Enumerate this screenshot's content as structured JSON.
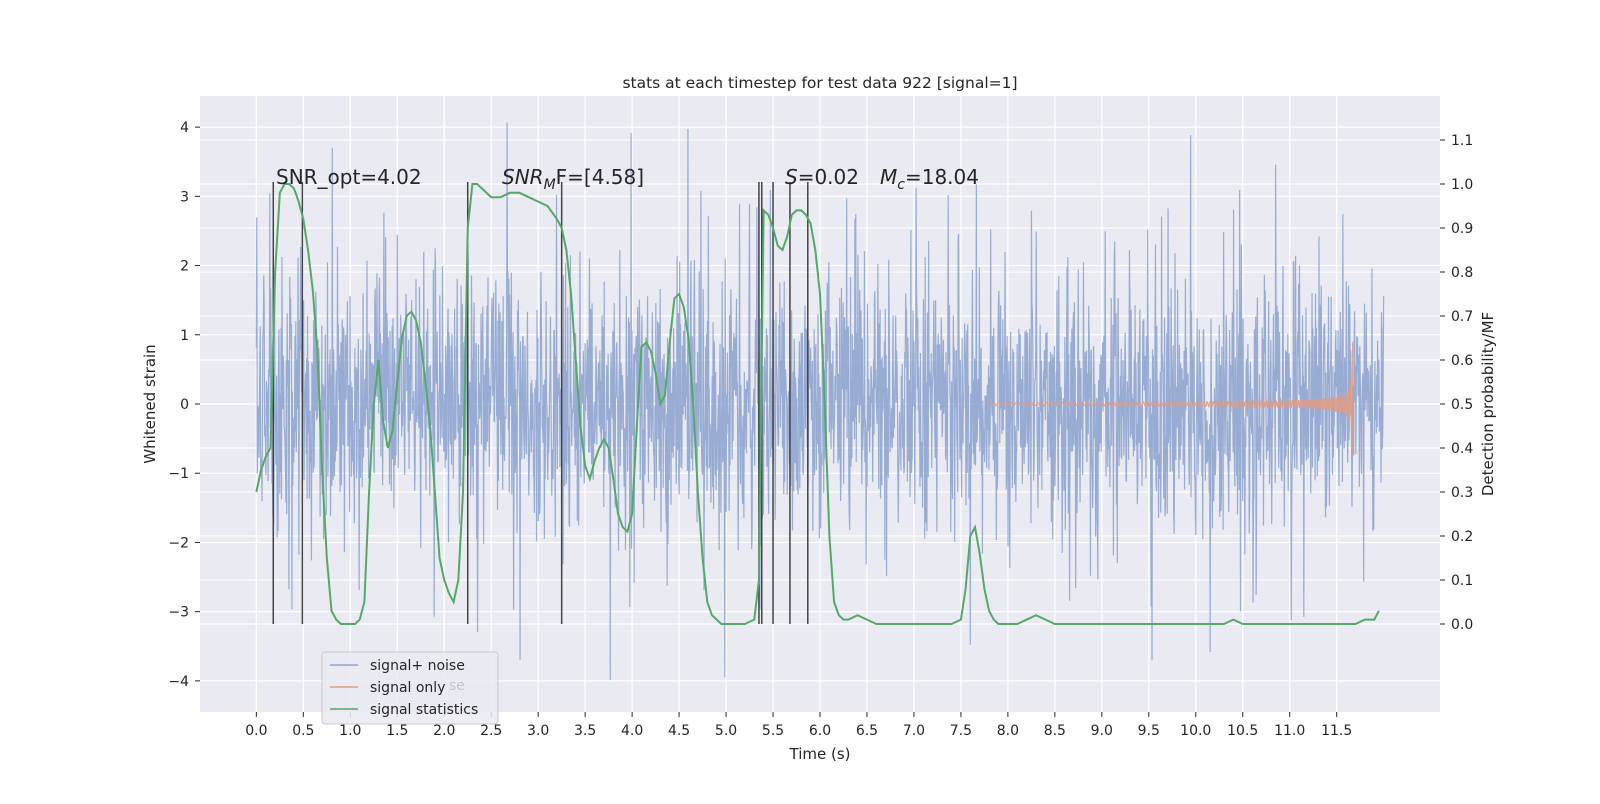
{
  "chart_data": {
    "type": "line",
    "title": "stats at each timestep for test data 922 [signal=1]",
    "xlabel": "Time (s)",
    "ylabel": "Whitened strain",
    "ylabel_right": "Detection probability/MF",
    "xlim": [
      -0.6,
      12.6
    ],
    "ylim": [
      -4.45,
      4.45
    ],
    "ylim_right": [
      -0.2,
      1.2
    ],
    "grid": true,
    "xticks": [
      0.0,
      0.5,
      1.0,
      1.5,
      2.0,
      2.5,
      3.0,
      3.5,
      4.0,
      4.5,
      5.0,
      5.5,
      6.0,
      6.5,
      7.0,
      7.5,
      8.0,
      8.5,
      9.0,
      9.5,
      10.0,
      10.5,
      11.0,
      11.5
    ],
    "xtick_labels": [
      "0.0",
      "0.5",
      "1.0",
      "1.5",
      "2.0",
      "2.5",
      "3.0",
      "3.5",
      "4.0",
      "4.5",
      "5.0",
      "5.5",
      "6.0",
      "6.5",
      "7.0",
      "7.5",
      "8.0",
      "8.5",
      "9.0",
      "9.5",
      "10.0",
      "10.5",
      "11.0",
      "11.5"
    ],
    "yticks_left": [
      -4,
      -3,
      -2,
      -1,
      0,
      1,
      2,
      3,
      4
    ],
    "yticks_left_labels": [
      "−4",
      "−3",
      "−2",
      "−1",
      "0",
      "1",
      "2",
      "3",
      "4"
    ],
    "yticks_right": [
      0.0,
      0.1,
      0.2,
      0.3,
      0.4,
      0.5,
      0.6,
      0.7,
      0.8,
      0.9,
      1.0,
      1.1
    ],
    "yticks_right_labels": [
      "0.0",
      "0.1",
      "0.2",
      "0.3",
      "0.4",
      "0.5",
      "0.6",
      "0.7",
      "0.8",
      "0.9",
      "1.0",
      "1.1"
    ],
    "legend": {
      "position": "lower-left",
      "entries": [
        {
          "label": "signal+ noise",
          "color": "#8fa5cf"
        },
        {
          "label": "signal only",
          "color": "#dd9c86"
        },
        {
          "label": "signal statistics",
          "color": "#55a868"
        }
      ],
      "ghost_text": "se"
    },
    "annotations": {
      "snr_opt": "SNR_opt=4.02",
      "snr_mf_main": "SNR",
      "snr_mf_sub": "M",
      "snr_mf_rest": "F=[4.58]",
      "s_main": "S",
      "s_rest": "=0.02",
      "mc_main": "M",
      "mc_sub": "c",
      "mc_rest": "=18.04"
    },
    "vertical_lines_x": [
      0.18,
      0.49,
      2.25,
      3.25,
      5.35,
      5.38,
      5.5,
      5.68,
      5.87
    ],
    "vertical_lines_range": [
      0.0,
      1.0
    ],
    "noise": {
      "t_start": 0.0,
      "t_end": 12.0,
      "envelope_typical": 2.0,
      "envelope_max": 4.1,
      "envelope_min": -4.05,
      "color": "#8fa5cf"
    },
    "signal_only": {
      "t_start": 7.8,
      "t_peak": 11.67,
      "peak_amplitude": 0.9,
      "min_amplitude": -0.75,
      "color": "#dd9c86"
    },
    "statistics": {
      "name": "signal statistics",
      "color": "#55a868",
      "x": [
        0.0,
        0.05,
        0.1,
        0.15,
        0.2,
        0.25,
        0.3,
        0.35,
        0.4,
        0.45,
        0.5,
        0.55,
        0.6,
        0.65,
        0.7,
        0.75,
        0.8,
        0.85,
        0.9,
        0.95,
        1.0,
        1.05,
        1.1,
        1.15,
        1.2,
        1.25,
        1.3,
        1.35,
        1.4,
        1.45,
        1.5,
        1.55,
        1.6,
        1.65,
        1.7,
        1.75,
        1.8,
        1.85,
        1.9,
        1.95,
        2.0,
        2.05,
        2.1,
        2.15,
        2.2,
        2.25,
        2.3,
        2.35,
        2.4,
        2.5,
        2.6,
        2.7,
        2.8,
        2.9,
        3.0,
        3.1,
        3.2,
        3.25,
        3.3,
        3.35,
        3.4,
        3.45,
        3.5,
        3.55,
        3.6,
        3.65,
        3.7,
        3.75,
        3.8,
        3.85,
        3.9,
        3.95,
        4.0,
        4.05,
        4.1,
        4.15,
        4.2,
        4.25,
        4.3,
        4.35,
        4.4,
        4.45,
        4.5,
        4.55,
        4.6,
        4.65,
        4.7,
        4.75,
        4.8,
        4.85,
        4.9,
        4.95,
        5.0,
        5.1,
        5.2,
        5.3,
        5.35,
        5.4,
        5.45,
        5.5,
        5.55,
        5.6,
        5.65,
        5.7,
        5.75,
        5.8,
        5.85,
        5.9,
        5.95,
        6.0,
        6.05,
        6.1,
        6.15,
        6.2,
        6.25,
        6.3,
        6.4,
        6.5,
        6.6,
        6.7,
        6.8,
        7.0,
        7.2,
        7.4,
        7.5,
        7.55,
        7.6,
        7.65,
        7.7,
        7.75,
        7.8,
        7.85,
        7.9,
        8.0,
        8.1,
        8.2,
        8.3,
        8.4,
        8.5,
        8.7,
        9.0,
        9.5,
        10.0,
        10.3,
        10.4,
        10.5,
        11.0,
        11.5,
        11.7,
        11.8,
        11.9,
        11.95
      ],
      "y": [
        0.3,
        0.35,
        0.38,
        0.4,
        0.8,
        0.98,
        1.0,
        1.0,
        0.99,
        0.96,
        0.92,
        0.85,
        0.76,
        0.62,
        0.35,
        0.15,
        0.03,
        0.01,
        0.0,
        0.0,
        0.0,
        0.0,
        0.01,
        0.05,
        0.3,
        0.5,
        0.6,
        0.46,
        0.4,
        0.44,
        0.55,
        0.65,
        0.7,
        0.71,
        0.69,
        0.64,
        0.55,
        0.45,
        0.3,
        0.15,
        0.1,
        0.07,
        0.05,
        0.1,
        0.3,
        0.9,
        1.0,
        1.0,
        0.99,
        0.97,
        0.97,
        0.98,
        0.98,
        0.97,
        0.96,
        0.95,
        0.92,
        0.9,
        0.85,
        0.75,
        0.6,
        0.45,
        0.36,
        0.33,
        0.37,
        0.4,
        0.42,
        0.4,
        0.33,
        0.25,
        0.22,
        0.21,
        0.25,
        0.45,
        0.63,
        0.64,
        0.62,
        0.57,
        0.5,
        0.52,
        0.64,
        0.74,
        0.75,
        0.72,
        0.65,
        0.5,
        0.3,
        0.15,
        0.05,
        0.02,
        0.01,
        0.0,
        0.0,
        0.0,
        0.0,
        0.01,
        0.1,
        0.94,
        0.93,
        0.9,
        0.86,
        0.85,
        0.88,
        0.93,
        0.94,
        0.94,
        0.93,
        0.91,
        0.85,
        0.75,
        0.5,
        0.2,
        0.05,
        0.02,
        0.01,
        0.01,
        0.02,
        0.01,
        0.0,
        0.0,
        0.0,
        0.0,
        0.0,
        0.0,
        0.01,
        0.08,
        0.2,
        0.22,
        0.16,
        0.08,
        0.03,
        0.01,
        0.0,
        0.0,
        0.0,
        0.01,
        0.02,
        0.01,
        0.0,
        0.0,
        0.0,
        0.0,
        0.0,
        0.0,
        0.01,
        0.0,
        0.0,
        0.0,
        0.0,
        0.01,
        0.01,
        0.03
      ]
    }
  }
}
